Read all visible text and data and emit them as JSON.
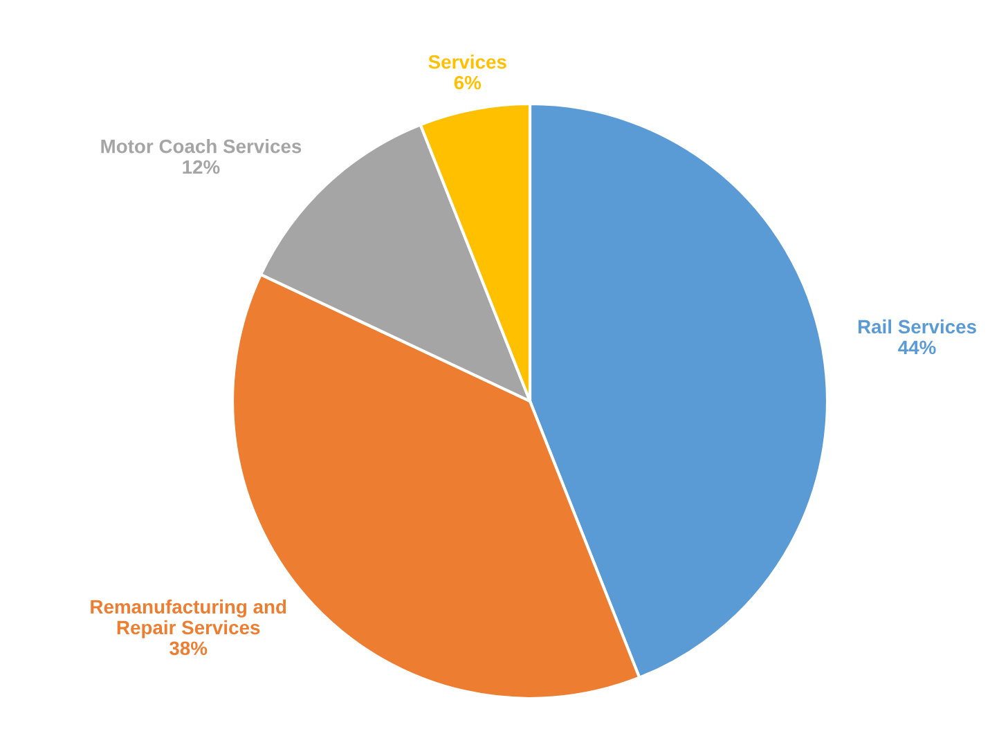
{
  "chart_data": {
    "type": "pie",
    "categories": [
      "Rail Services",
      "Remanufacturing and Repair Services",
      "Motor Coach Services",
      "Services"
    ],
    "values": [
      44,
      38,
      12,
      6
    ],
    "value_labels": [
      "44%",
      "38%",
      "12%",
      "6%"
    ],
    "colors": [
      "#5b9bd5",
      "#ed7d31",
      "#a5a5a5",
      "#ffc000"
    ],
    "legend": false
  }
}
